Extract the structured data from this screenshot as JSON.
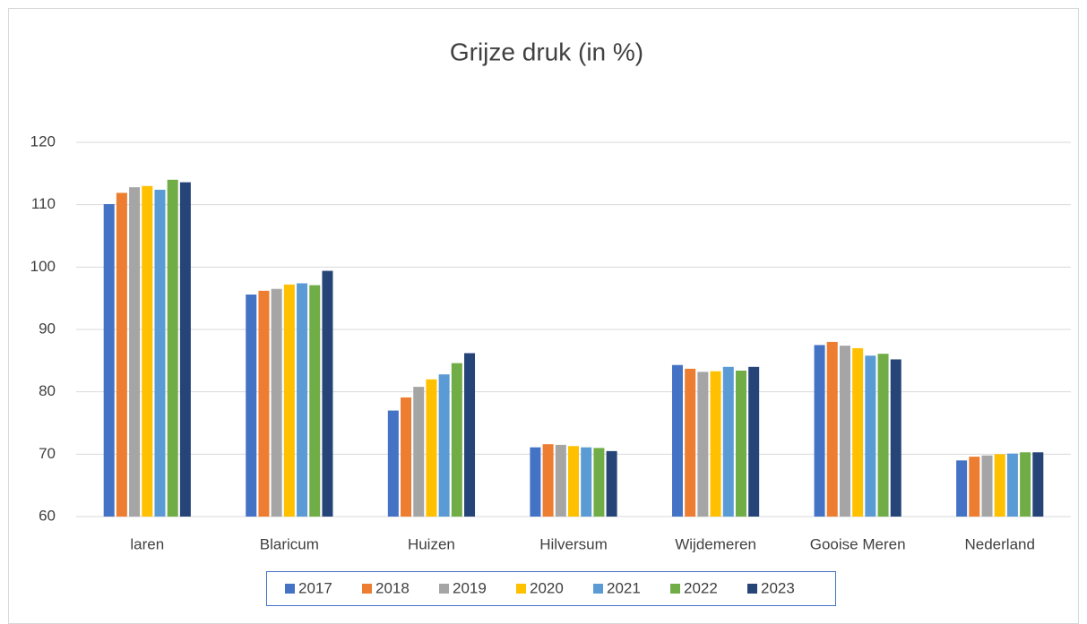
{
  "chart_data": {
    "type": "bar",
    "title": "Grijze druk (in %)",
    "categories": [
      "laren",
      "Blaricum",
      "Huizen",
      "Hilversum",
      "Wijdemeren",
      "Gooise Meren",
      "Nederland"
    ],
    "series": [
      {
        "name": "2017",
        "color": "#4472c4",
        "values": [
          110.1,
          95.6,
          77.0,
          71.1,
          84.3,
          87.5,
          69.0
        ]
      },
      {
        "name": "2018",
        "color": "#ed7d31",
        "values": [
          111.9,
          96.2,
          79.1,
          71.6,
          83.7,
          88.0,
          69.6
        ]
      },
      {
        "name": "2019",
        "color": "#a5a5a5",
        "values": [
          112.8,
          96.5,
          80.8,
          71.5,
          83.2,
          87.4,
          69.8
        ]
      },
      {
        "name": "2020",
        "color": "#ffc000",
        "values": [
          113.0,
          97.2,
          82.0,
          71.3,
          83.3,
          87.0,
          70.0
        ]
      },
      {
        "name": "2021",
        "color": "#5b9bd5",
        "values": [
          112.4,
          97.4,
          82.8,
          71.1,
          84.0,
          85.8,
          70.1
        ]
      },
      {
        "name": "2022",
        "color": "#70ad47",
        "values": [
          114.0,
          97.1,
          84.6,
          71.0,
          83.4,
          86.1,
          70.3
        ]
      },
      {
        "name": "2023",
        "color": "#264478",
        "values": [
          113.6,
          99.4,
          86.2,
          70.5,
          84.0,
          85.2,
          70.3
        ]
      }
    ],
    "ylim": [
      60,
      120
    ],
    "yticks": [
      60,
      70,
      80,
      90,
      100,
      110,
      120
    ],
    "grid": true,
    "legend": "bottom"
  }
}
